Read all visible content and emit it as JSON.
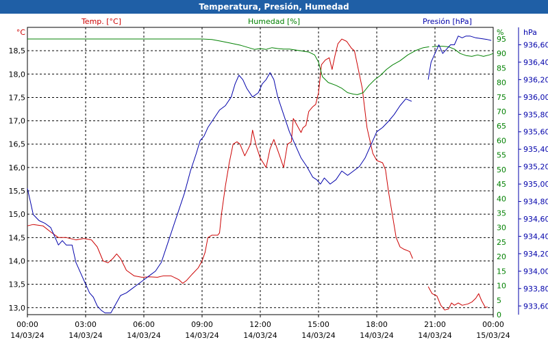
{
  "window": {
    "title": "Temperatura, Presión, Humedad"
  },
  "colors": {
    "temperature": "#cc0000",
    "humidity": "#008000",
    "pressure": "#0000aa",
    "titlebar": "#1f5fa6"
  },
  "chart_data": {
    "type": "line",
    "title": "Temperatura, Presión, Humedad",
    "grid": true,
    "x_ticks": [
      {
        "time": "00:00",
        "date": "14/03/24"
      },
      {
        "time": "03:00",
        "date": "14/03/24"
      },
      {
        "time": "06:00",
        "date": "14/03/24"
      },
      {
        "time": "09:00",
        "date": "14/03/24"
      },
      {
        "time": "12:00",
        "date": "14/03/24"
      },
      {
        "time": "15:00",
        "date": "14/03/24"
      },
      {
        "time": "18:00",
        "date": "14/03/24"
      },
      {
        "time": "21:00",
        "date": "14/03/24"
      },
      {
        "time": "00:00",
        "date": "15/03/24"
      }
    ],
    "x_range_hours": [
      0,
      24
    ],
    "axes": {
      "temperature": {
        "label": "Temp. [°C]",
        "unit": "°C",
        "min": 12.85,
        "max": 19.0,
        "ticks": [
          "13,0",
          "13,5",
          "14,0",
          "14,5",
          "15,0",
          "15,5",
          "16,0",
          "16,5",
          "17,0",
          "17,5",
          "18,0",
          "18,5"
        ]
      },
      "humidity": {
        "label": "Humedad [%]",
        "unit": "%",
        "min": 0,
        "max": 99,
        "ticks": [
          "0",
          "5",
          "10",
          "15",
          "20",
          "25",
          "30",
          "35",
          "40",
          "45",
          "50",
          "55",
          "60",
          "65",
          "70",
          "75",
          "80",
          "85",
          "90",
          "95"
        ]
      },
      "pressure": {
        "label": "Presión [hPa]",
        "unit": "hPa",
        "min": 933.5,
        "max": 936.8,
        "ticks": [
          "933,60",
          "933,80",
          "934,00",
          "934,20",
          "934,40",
          "934,60",
          "934,80",
          "935,00",
          "935,20",
          "935,40",
          "935,60",
          "935,80",
          "936,00",
          "936,20",
          "936,40",
          "936,60"
        ]
      }
    },
    "series": [
      {
        "name": "Temp. [°C]",
        "axis": "temperature",
        "segments": [
          [
            [
              0,
              14.75
            ],
            [
              0.3,
              14.78
            ],
            [
              0.8,
              14.75
            ],
            [
              1.2,
              14.62
            ],
            [
              1.6,
              14.5
            ],
            [
              2.0,
              14.5
            ],
            [
              2.5,
              14.45
            ],
            [
              2.9,
              14.48
            ],
            [
              3.3,
              14.45
            ],
            [
              3.6,
              14.3
            ],
            [
              3.9,
              14.0
            ],
            [
              4.15,
              13.96
            ],
            [
              4.4,
              14.05
            ],
            [
              4.6,
              14.15
            ],
            [
              4.8,
              14.05
            ],
            [
              5.1,
              13.8
            ],
            [
              5.5,
              13.68
            ],
            [
              5.9,
              13.65
            ],
            [
              6.3,
              13.66
            ],
            [
              6.7,
              13.65
            ],
            [
              7.0,
              13.68
            ],
            [
              7.4,
              13.68
            ],
            [
              7.8,
              13.6
            ],
            [
              8.0,
              13.52
            ],
            [
              8.2,
              13.58
            ],
            [
              8.5,
              13.72
            ],
            [
              8.8,
              13.85
            ],
            [
              9.0,
              14.0
            ],
            [
              9.15,
              14.18
            ],
            [
              9.3,
              14.5
            ],
            [
              9.5,
              14.55
            ],
            [
              9.8,
              14.55
            ],
            [
              9.9,
              14.6
            ],
            [
              10.0,
              15.0
            ],
            [
              10.2,
              15.6
            ],
            [
              10.4,
              16.1
            ],
            [
              10.6,
              16.5
            ],
            [
              10.8,
              16.55
            ],
            [
              10.95,
              16.5
            ],
            [
              11.2,
              16.25
            ],
            [
              11.5,
              16.5
            ],
            [
              11.6,
              16.8
            ],
            [
              11.8,
              16.45
            ],
            [
              12.0,
              16.2
            ],
            [
              12.3,
              16.0
            ],
            [
              12.5,
              16.4
            ],
            [
              12.7,
              16.6
            ],
            [
              13.0,
              16.25
            ],
            [
              13.2,
              16.0
            ],
            [
              13.4,
              16.5
            ],
            [
              13.6,
              16.55
            ],
            [
              13.7,
              17.05
            ],
            [
              13.9,
              16.9
            ],
            [
              14.1,
              16.75
            ],
            [
              14.2,
              16.85
            ],
            [
              14.35,
              16.9
            ],
            [
              14.5,
              17.2
            ],
            [
              14.7,
              17.3
            ],
            [
              14.85,
              17.35
            ],
            [
              15.0,
              17.6
            ],
            [
              15.15,
              18.2
            ],
            [
              15.35,
              18.3
            ],
            [
              15.55,
              18.35
            ],
            [
              15.7,
              18.1
            ],
            [
              15.85,
              18.4
            ],
            [
              16.0,
              18.65
            ],
            [
              16.2,
              18.75
            ],
            [
              16.45,
              18.7
            ],
            [
              16.7,
              18.55
            ],
            [
              16.85,
              18.5
            ],
            [
              17.0,
              18.2
            ],
            [
              17.25,
              17.7
            ],
            [
              17.5,
              16.85
            ],
            [
              17.8,
              16.3
            ],
            [
              18.0,
              16.15
            ],
            [
              18.3,
              16.1
            ],
            [
              18.45,
              15.95
            ],
            [
              18.6,
              15.5
            ],
            [
              18.8,
              15.0
            ],
            [
              19.0,
              14.5
            ],
            [
              19.2,
              14.3
            ],
            [
              19.4,
              14.25
            ],
            [
              19.7,
              14.2
            ],
            [
              19.85,
              14.05
            ]
          ],
          [
            [
              20.65,
              13.45
            ],
            [
              20.85,
              13.3
            ],
            [
              21.1,
              13.25
            ],
            [
              21.3,
              13.05
            ],
            [
              21.5,
              12.95
            ],
            [
              21.7,
              12.97
            ],
            [
              21.85,
              13.1
            ],
            [
              22.0,
              13.05
            ],
            [
              22.2,
              13.1
            ],
            [
              22.4,
              13.05
            ],
            [
              22.7,
              13.08
            ],
            [
              22.9,
              13.12
            ],
            [
              23.1,
              13.2
            ],
            [
              23.25,
              13.3
            ],
            [
              23.4,
              13.15
            ],
            [
              23.6,
              13.0
            ],
            [
              23.7,
              13.02
            ]
          ]
        ]
      },
      {
        "name": "Humedad [%]",
        "axis": "humidity",
        "segments": [
          [
            [
              0,
              95
            ],
            [
              1,
              95
            ],
            [
              2,
              95
            ],
            [
              3,
              95
            ],
            [
              4,
              95
            ],
            [
              5,
              95
            ],
            [
              6,
              95
            ],
            [
              7,
              95
            ],
            [
              8,
              95
            ],
            [
              9,
              95
            ],
            [
              9.5,
              94.8
            ],
            [
              10.0,
              94.2
            ],
            [
              10.5,
              93.5
            ],
            [
              11.0,
              92.8
            ],
            [
              11.4,
              92.0
            ],
            [
              11.7,
              91.4
            ],
            [
              12.0,
              91.7
            ],
            [
              12.3,
              91.4
            ],
            [
              12.6,
              92.0
            ],
            [
              12.9,
              91.7
            ],
            [
              13.2,
              91.5
            ],
            [
              13.5,
              91.5
            ],
            [
              14.0,
              91.0
            ],
            [
              14.5,
              90.5
            ],
            [
              14.8,
              89.5
            ],
            [
              15.0,
              87.0
            ],
            [
              15.2,
              82.0
            ],
            [
              15.5,
              80.0
            ],
            [
              15.9,
              79.0
            ],
            [
              16.2,
              78.0
            ],
            [
              16.5,
              76.5
            ],
            [
              16.8,
              76.0
            ],
            [
              17.0,
              75.8
            ],
            [
              17.3,
              76.5
            ],
            [
              17.6,
              79.0
            ],
            [
              17.9,
              81.0
            ],
            [
              18.2,
              82.5
            ],
            [
              18.5,
              84.5
            ],
            [
              18.8,
              86.0
            ],
            [
              19.2,
              87.5
            ],
            [
              19.6,
              89.5
            ],
            [
              20.0,
              91.0
            ],
            [
              20.4,
              92.0
            ],
            [
              20.7,
              92.3
            ]
          ],
          [
            [
              20.85,
              92.3
            ],
            [
              21.1,
              92.5
            ],
            [
              21.4,
              92.5
            ],
            [
              21.7,
              92.3
            ],
            [
              22.0,
              91.5
            ],
            [
              22.3,
              90.0
            ],
            [
              22.6,
              89.3
            ],
            [
              22.9,
              89.0
            ],
            [
              23.2,
              89.5
            ],
            [
              23.5,
              89.0
            ],
            [
              23.8,
              89.5
            ],
            [
              24.0,
              90.0
            ]
          ]
        ]
      },
      {
        "name": "Presión [hPa]",
        "axis": "pressure",
        "segments": [
          [
            [
              0,
              934.95
            ],
            [
              0.15,
              934.8
            ],
            [
              0.3,
              934.65
            ],
            [
              0.6,
              934.58
            ],
            [
              0.9,
              934.55
            ],
            [
              1.2,
              934.5
            ],
            [
              1.4,
              934.4
            ],
            [
              1.6,
              934.3
            ],
            [
              1.8,
              934.35
            ],
            [
              2.0,
              934.3
            ],
            [
              2.3,
              934.3
            ],
            [
              2.5,
              934.1
            ],
            [
              2.8,
              933.95
            ],
            [
              3.0,
              933.85
            ],
            [
              3.2,
              933.75
            ],
            [
              3.4,
              933.7
            ],
            [
              3.6,
              933.6
            ],
            [
              3.8,
              933.55
            ],
            [
              4.0,
              933.52
            ],
            [
              4.3,
              933.52
            ],
            [
              4.5,
              933.6
            ],
            [
              4.8,
              933.72
            ],
            [
              5.1,
              933.75
            ],
            [
              5.4,
              933.8
            ],
            [
              5.7,
              933.85
            ],
            [
              6.0,
              933.9
            ],
            [
              6.3,
              933.95
            ],
            [
              6.6,
              934.0
            ],
            [
              6.9,
              934.1
            ],
            [
              7.2,
              934.3
            ],
            [
              7.5,
              934.5
            ],
            [
              7.8,
              934.7
            ],
            [
              8.1,
              934.9
            ],
            [
              8.4,
              935.15
            ],
            [
              8.7,
              935.35
            ],
            [
              8.9,
              935.5
            ],
            [
              9.1,
              935.55
            ],
            [
              9.3,
              935.65
            ],
            [
              9.6,
              935.75
            ],
            [
              9.9,
              935.85
            ],
            [
              10.2,
              935.9
            ],
            [
              10.5,
              936.0
            ],
            [
              10.7,
              936.15
            ],
            [
              10.9,
              936.25
            ],
            [
              11.1,
              936.2
            ],
            [
              11.3,
              936.1
            ],
            [
              11.6,
              936.0
            ],
            [
              11.9,
              936.05
            ],
            [
              12.1,
              936.15
            ],
            [
              12.3,
              936.2
            ],
            [
              12.5,
              936.28
            ],
            [
              12.7,
              936.2
            ],
            [
              12.9,
              936.0
            ],
            [
              13.2,
              935.8
            ],
            [
              13.5,
              935.6
            ],
            [
              13.8,
              935.45
            ],
            [
              14.1,
              935.3
            ],
            [
              14.4,
              935.2
            ],
            [
              14.7,
              935.08
            ],
            [
              14.9,
              935.05
            ],
            [
              15.1,
              935.0
            ],
            [
              15.3,
              935.07
            ],
            [
              15.6,
              935.0
            ],
            [
              15.9,
              935.05
            ],
            [
              16.2,
              935.15
            ],
            [
              16.5,
              935.1
            ],
            [
              16.8,
              935.15
            ],
            [
              17.1,
              935.2
            ],
            [
              17.4,
              935.3
            ],
            [
              17.7,
              935.45
            ],
            [
              18.0,
              935.6
            ],
            [
              18.3,
              935.65
            ],
            [
              18.6,
              935.72
            ],
            [
              18.9,
              935.8
            ],
            [
              19.2,
              935.9
            ],
            [
              19.5,
              935.98
            ],
            [
              19.8,
              935.95
            ]
          ],
          [
            [
              20.65,
              936.2
            ],
            [
              20.8,
              936.4
            ],
            [
              21.0,
              936.5
            ],
            [
              21.2,
              936.6
            ],
            [
              21.4,
              936.5
            ],
            [
              21.6,
              936.55
            ],
            [
              21.8,
              936.6
            ],
            [
              22.0,
              936.6
            ],
            [
              22.2,
              936.7
            ],
            [
              22.4,
              936.68
            ],
            [
              22.6,
              936.7
            ],
            [
              22.8,
              936.7
            ],
            [
              23.1,
              936.68
            ],
            [
              23.4,
              936.67
            ],
            [
              23.7,
              936.66
            ],
            [
              23.9,
              936.65
            ]
          ]
        ]
      }
    ]
  }
}
